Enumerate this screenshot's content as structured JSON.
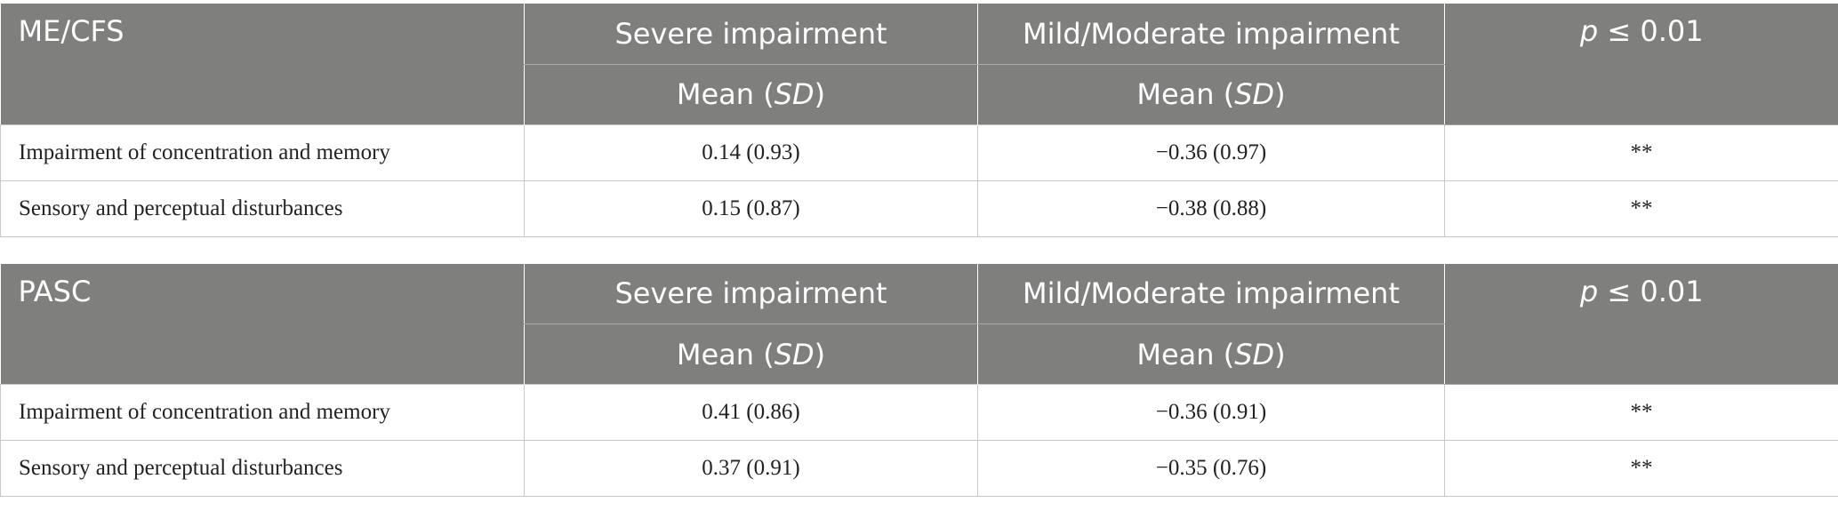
{
  "tables": [
    {
      "group": "ME/CFS",
      "columns": [
        "Severe impairment",
        "Mild/Moderate impairment"
      ],
      "p_header": {
        "italic": "p",
        "text": "≤ 0.01"
      },
      "subheader": {
        "before": "Mean (",
        "italic": "SD",
        "after": ")"
      },
      "rows": [
        [
          "Impairment of concentration and memory",
          "0.14 (0.93)",
          "−0.36 (0.97)",
          "**"
        ],
        [
          "Sensory and perceptual disturbances",
          "0.15 (0.87)",
          "−0.38 (0.88)",
          "**"
        ]
      ]
    },
    {
      "group": "PASC",
      "columns": [
        "Severe impairment",
        "Mild/Moderate impairment"
      ],
      "p_header": {
        "italic": "p",
        "text": "≤ 0.01"
      },
      "subheader": {
        "before": "Mean (",
        "italic": "SD",
        "after": ")"
      },
      "rows": [
        [
          "Impairment of concentration and memory",
          "0.41 (0.86)",
          "−0.36 (0.91)",
          "**"
        ],
        [
          "Sensory and perceptual disturbances",
          "0.37 (0.91)",
          "−0.35 (0.76)",
          "**"
        ]
      ]
    }
  ]
}
